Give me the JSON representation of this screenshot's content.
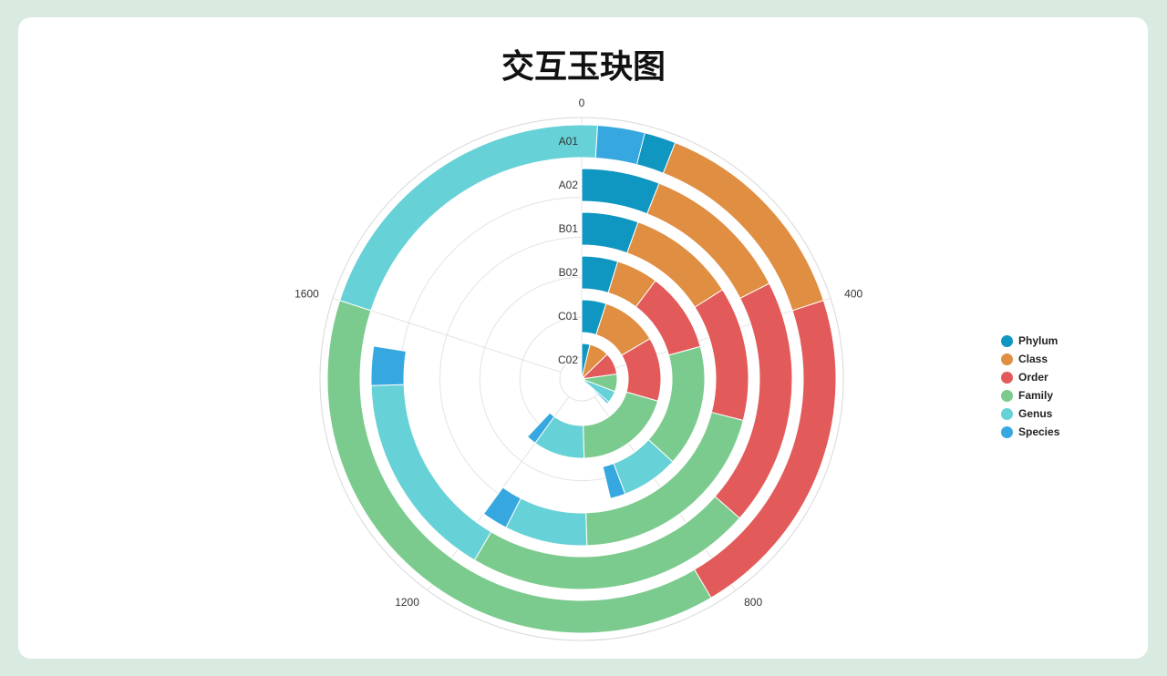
{
  "title": "交互玉玦图",
  "chart_data": {
    "type": "radial-bar",
    "title": "交互玉玦图",
    "stacked": true,
    "categories": [
      "A01",
      "A02",
      "B01",
      "B02",
      "C01",
      "C02"
    ],
    "angle_axis": {
      "min": 0,
      "max": 2000,
      "ticks": [
        0,
        400,
        800,
        1200,
        1600
      ]
    },
    "series": [
      {
        "name": "Phylum",
        "color": "#0f96c1",
        "values": [
          120,
          120,
          110,
          95,
          100,
          75
        ]
      },
      {
        "name": "Class",
        "color": "#e08e42",
        "values": [
          280,
          230,
          210,
          110,
          230,
          180
        ]
      },
      {
        "name": "Order",
        "color": "#e25a5a",
        "values": [
          430,
          380,
          260,
          210,
          260,
          200
        ]
      },
      {
        "name": "Family",
        "color": "#7ccb8e",
        "values": [
          770,
          440,
          410,
          320,
          400,
          160
        ]
      },
      {
        "name": "Genus",
        "color": "#66d1d6",
        "values": [
          420,
          320,
          160,
          150,
          210,
          110
        ]
      },
      {
        "name": "Species",
        "color": "#36a8df",
        "values": [
          60,
          60,
          50,
          40,
          40,
          20
        ]
      }
    ],
    "legend_position": "right",
    "grid": true
  }
}
